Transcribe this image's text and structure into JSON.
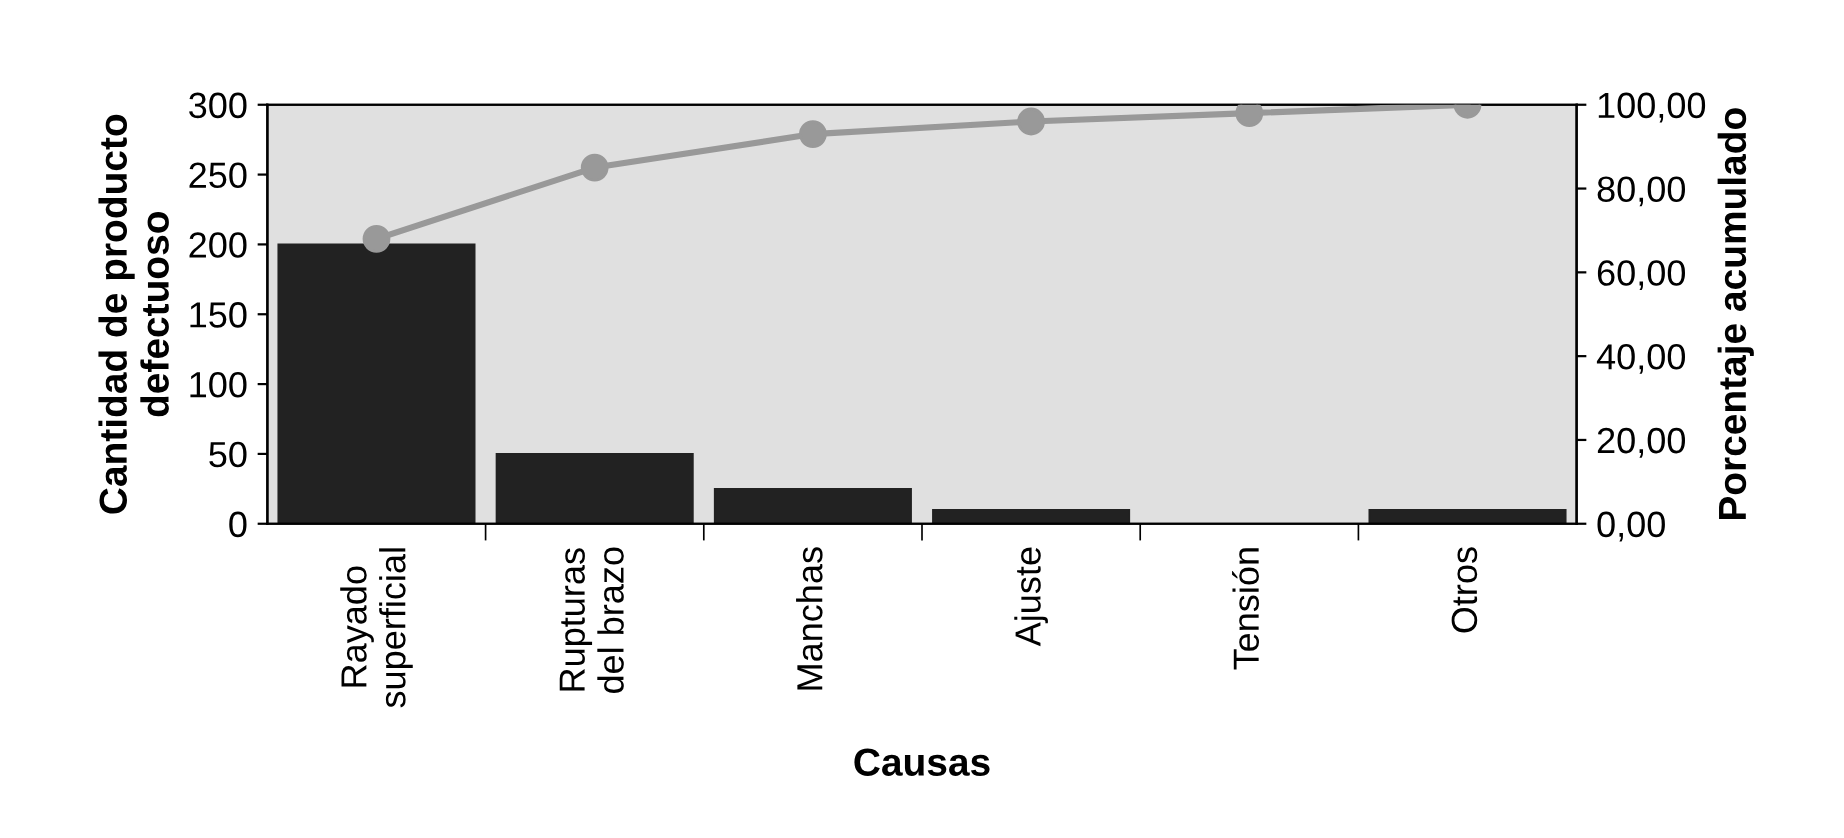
{
  "chart_data": {
    "type": "bar",
    "xlabel": "Causas",
    "ylabel": "Cantidad de producto\ndefectuoso",
    "y2label": "Porcentaje acumulado",
    "categories": [
      "Rayado\nsuperficial",
      "Rupturas\ndel brazo",
      "Manchas",
      "Ajuste",
      "Tensión",
      "Otros"
    ],
    "series": [
      {
        "color": "#222222",
        "values": [
          200,
          50,
          25,
          10,
          0,
          10
        ]
      },
      {
        "type": "line",
        "axis": "y2",
        "color": "#999999",
        "marker": "circle",
        "values": [
          68,
          85,
          93,
          96,
          98,
          100
        ]
      }
    ],
    "ylim": [
      0,
      300
    ],
    "yticks": [
      0,
      50,
      100,
      150,
      200,
      250,
      300
    ],
    "y2lim": [
      0,
      100
    ],
    "y2ticks": [
      {
        "value": 0,
        "label": "0,00"
      },
      {
        "value": 20,
        "label": "20,00"
      },
      {
        "value": 40,
        "label": "40,00"
      },
      {
        "value": 60,
        "label": "60,00"
      },
      {
        "value": 80,
        "label": "80,00"
      },
      {
        "value": 100,
        "label": "100,00"
      }
    ],
    "grid": false,
    "legend": false
  }
}
